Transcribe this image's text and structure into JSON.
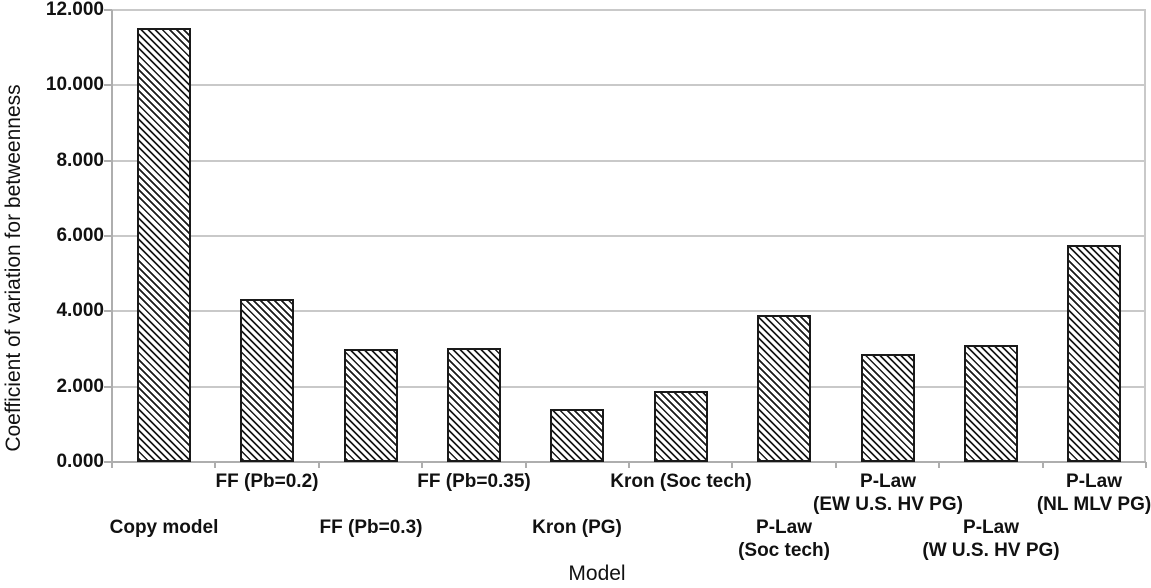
{
  "chart_data": {
    "type": "bar",
    "title": "",
    "xlabel": "Model",
    "ylabel": "Coefficient of variation for betweenness",
    "ylim": [
      0,
      12
    ],
    "ytick_step": 2,
    "grid": true,
    "legend": "none",
    "yticks": [
      {
        "value": 0,
        "label": "0.000"
      },
      {
        "value": 2,
        "label": "2.000"
      },
      {
        "value": 4,
        "label": "4.000"
      },
      {
        "value": 6,
        "label": "6.000"
      },
      {
        "value": 8,
        "label": "8.000"
      },
      {
        "value": 10,
        "label": "10.000"
      },
      {
        "value": 12,
        "label": "12.000"
      }
    ],
    "categories": [
      [
        "Copy model"
      ],
      [
        "FF (Pb=0.2)"
      ],
      [
        "FF (Pb=0.3)"
      ],
      [
        "FF (Pb=0.35)"
      ],
      [
        "Kron (PG)"
      ],
      [
        "Kron (Soc tech)"
      ],
      [
        "P-Law",
        "(Soc tech)"
      ],
      [
        "P-Law",
        "(EW U.S. HV PG)"
      ],
      [
        "P-Law",
        "(W U.S. HV PG)"
      ],
      [
        "P-Law",
        "(NL MLV PG)"
      ]
    ],
    "values": [
      11.51,
      4.32,
      3.01,
      3.02,
      1.42,
      1.88,
      3.9,
      2.87,
      3.1,
      5.77
    ],
    "label_rows": [
      "low",
      "high",
      "low",
      "high",
      "low",
      "high",
      "low",
      "high",
      "low",
      "high"
    ],
    "bar_style": {
      "fill": "#ffffff",
      "hatch": "diagonal-down",
      "hatch_color": "#1a1a1a",
      "border_color": "#1a1a1a"
    },
    "colors": {
      "gridline": "#c9c9c9",
      "axis": "#aeaeae",
      "text": "#111111",
      "background": "#ffffff"
    }
  }
}
